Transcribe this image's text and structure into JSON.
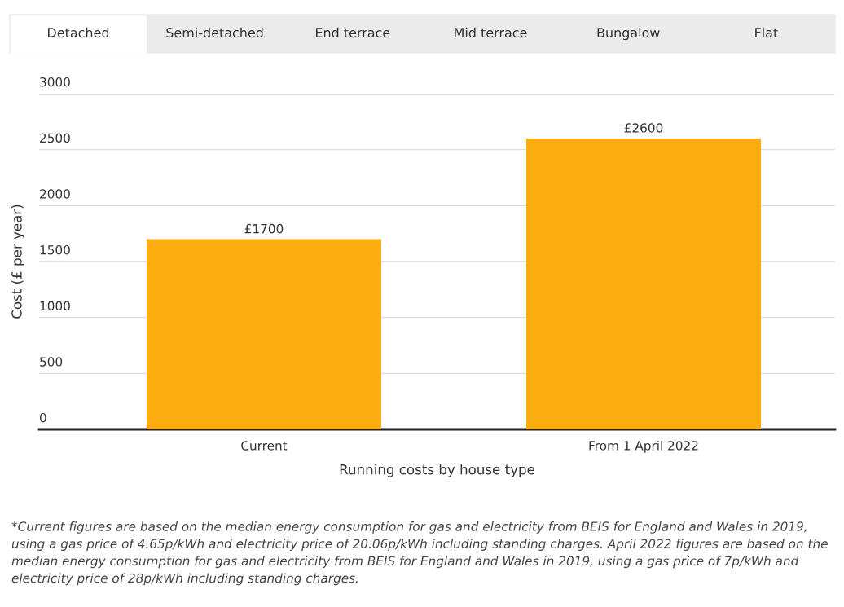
{
  "chart_data": {
    "type": "bar",
    "categories": [
      "Current",
      "From 1 April 2022"
    ],
    "values": [
      1700,
      2600
    ],
    "value_labels": [
      "£1700",
      "£2600"
    ],
    "color": "#fbad10",
    "xlabel": "Running costs by house type",
    "ylabel": "Cost (£ per year)",
    "ylim": [
      0,
      3000
    ],
    "yticks": [
      0,
      500,
      1000,
      1500,
      2000,
      2500,
      3000
    ],
    "grid": "y",
    "annotations": [
      "Detached",
      "Semi-detached",
      "End terrace",
      "Mid terrace",
      "Bungalow",
      "Flat",
      "*Current figures are based on the median energy consumption for gas and electricity from BEIS for England and Wales in 2019, using a gas price of 4.65p/kWh and electricity price of 20.06p/kWh including standing charges. April 2022 figures are based on the median energy consumption for gas and electricity from BEIS for England and Wales in 2019, using a gas price of 7p/kWh and electricity price of 28p/kWh including standing charges."
    ]
  }
}
